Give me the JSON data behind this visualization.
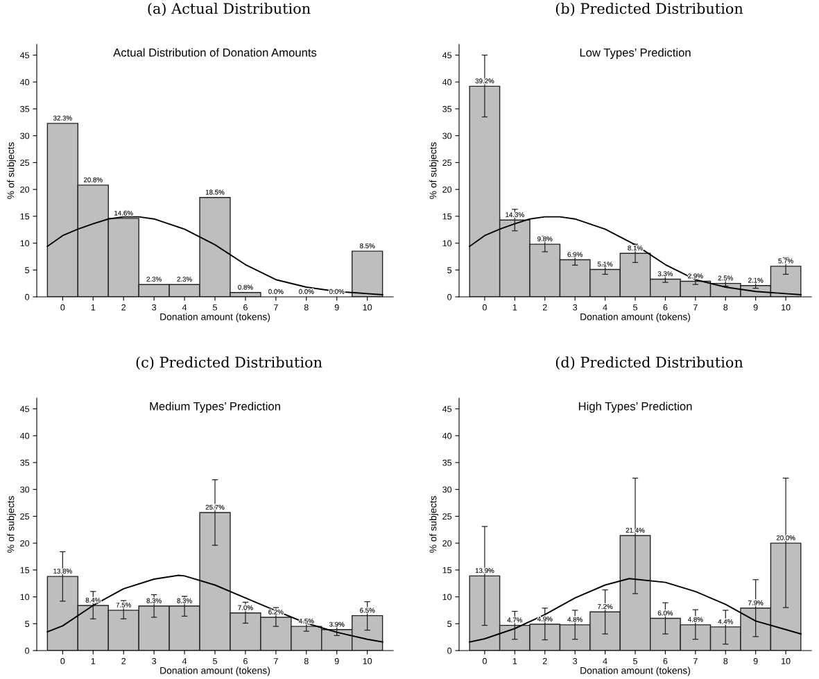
{
  "chart_data": [
    {
      "type": "bar",
      "title": "(a) Actual Distribution",
      "subtitle": "Actual Distribution of Donation Amounts",
      "xlabel": "Donation amount (tokens)",
      "ylabel": "% of subjects",
      "x": [
        0,
        1,
        2,
        3,
        4,
        5,
        6,
        7,
        8,
        9,
        10
      ],
      "xlim": [
        -0.85,
        10.85
      ],
      "xticks": [
        0,
        1,
        2,
        3,
        4,
        5,
        6,
        7,
        8,
        9,
        10
      ],
      "ylim": [
        0,
        47
      ],
      "yticks": [
        0,
        5,
        10,
        15,
        20,
        25,
        30,
        35,
        40,
        45
      ],
      "grid": false,
      "series": [
        {
          "color": "#bebebe",
          "values": [
            32.3,
            20.8,
            14.6,
            2.3,
            2.3,
            18.5,
            0.8,
            0.0,
            0.0,
            0.0,
            8.5
          ],
          "value_labels": [
            "32.3%",
            "20.8%",
            "14.6%",
            "2.3%",
            "2.3%",
            "18.5%",
            "0.8%",
            "0.0%",
            "0.0%",
            "0.0%",
            "8.5%"
          ]
        },
        {
          "type": "line",
          "color": "#000000",
          "x": [
            -0.5,
            0,
            0.5,
            1,
            1.5,
            2,
            2.5,
            3,
            4,
            5,
            6,
            7,
            8,
            9,
            10,
            10.5
          ],
          "values": [
            9.4,
            11.4,
            12.6,
            13.6,
            14.5,
            14.9,
            14.9,
            14.5,
            12.6,
            9.7,
            6.0,
            3.2,
            1.8,
            1.0,
            0.6,
            0.4
          ]
        }
      ]
    },
    {
      "type": "bar",
      "title": "(b) Predicted Distribution",
      "subtitle": "Low Types’ Prediction",
      "xlabel": "Donation amount (tokens)",
      "ylabel": "% of subjects",
      "x": [
        0,
        1,
        2,
        3,
        4,
        5,
        6,
        7,
        8,
        9,
        10
      ],
      "xlim": [
        -0.85,
        10.85
      ],
      "xticks": [
        0,
        1,
        2,
        3,
        4,
        5,
        6,
        7,
        8,
        9,
        10
      ],
      "ylim": [
        0,
        47
      ],
      "yticks": [
        0,
        5,
        10,
        15,
        20,
        25,
        30,
        35,
        40,
        45
      ],
      "grid": false,
      "series": [
        {
          "color": "#bebebe",
          "values": [
            39.2,
            14.3,
            9.8,
            6.9,
            5.1,
            8.1,
            3.3,
            2.9,
            2.5,
            2.1,
            5.7
          ],
          "value_labels": [
            "39.2%",
            "14.3%",
            "9.8%",
            "6.9%",
            "5.1%",
            "8.1%",
            "3.3%",
            "2.9%",
            "2.5%",
            "2.1%",
            "5.7%"
          ],
          "errors": [
            [
              33.5,
              45.0
            ],
            [
              12.3,
              16.3
            ],
            [
              8.4,
              11.3
            ],
            [
              5.9,
              8.0
            ],
            [
              4.2,
              6.0
            ],
            [
              6.4,
              9.8
            ],
            [
              2.7,
              4.1
            ],
            [
              2.3,
              3.5
            ],
            [
              2.0,
              3.1
            ],
            [
              1.6,
              2.8
            ],
            [
              4.2,
              7.3
            ]
          ]
        },
        {
          "type": "line",
          "color": "#000000",
          "x": [
            -0.5,
            0,
            0.5,
            1,
            1.5,
            2,
            2.5,
            3,
            4,
            5,
            6,
            7,
            8,
            9,
            10,
            10.5
          ],
          "values": [
            9.4,
            11.4,
            12.6,
            13.6,
            14.5,
            14.9,
            14.9,
            14.5,
            12.6,
            9.7,
            6.0,
            3.2,
            1.8,
            1.0,
            0.6,
            0.4
          ]
        }
      ]
    },
    {
      "type": "bar",
      "title": "(c) Predicted Distribution",
      "subtitle": "Medium Types’ Prediction",
      "xlabel": "Donation amount (tokens)",
      "ylabel": "% of subjects",
      "x": [
        0,
        1,
        2,
        3,
        4,
        5,
        6,
        7,
        8,
        9,
        10
      ],
      "xlim": [
        -0.85,
        10.85
      ],
      "xticks": [
        0,
        1,
        2,
        3,
        4,
        5,
        6,
        7,
        8,
        9,
        10
      ],
      "ylim": [
        0,
        47
      ],
      "yticks": [
        0,
        5,
        10,
        15,
        20,
        25,
        30,
        35,
        40,
        45
      ],
      "grid": false,
      "series": [
        {
          "color": "#bebebe",
          "values": [
            13.8,
            8.4,
            7.5,
            8.3,
            8.3,
            25.7,
            7.0,
            6.2,
            4.5,
            3.9,
            6.5
          ],
          "value_labels": [
            "13.8%",
            "8.4%",
            "7.5%",
            "8.3%",
            "8.3%",
            "25.7%",
            "7.0%",
            "6.2%",
            "4.5%",
            "3.9%",
            "6.5%"
          ],
          "errors": [
            [
              9.2,
              18.4
            ],
            [
              5.9,
              11.0
            ],
            [
              5.9,
              9.3
            ],
            [
              6.2,
              10.4
            ],
            [
              6.4,
              10.1
            ],
            [
              19.6,
              31.8
            ],
            [
              5.1,
              9.0
            ],
            [
              4.5,
              8.0
            ],
            [
              3.6,
              5.2
            ],
            [
              2.8,
              5.2
            ],
            [
              3.8,
              9.1
            ]
          ]
        },
        {
          "type": "line",
          "color": "#000000",
          "x": [
            -0.5,
            0,
            1,
            2,
            3,
            3.8,
            4,
            5,
            6,
            7,
            8,
            9,
            10,
            10.5
          ],
          "values": [
            3.5,
            4.6,
            8.4,
            11.5,
            13.3,
            14.0,
            13.9,
            12.2,
            9.8,
            7.4,
            5.1,
            3.4,
            2.1,
            1.6
          ]
        }
      ]
    },
    {
      "type": "bar",
      "title": "(d) Predicted Distribution",
      "subtitle": "High Types’ Prediction",
      "xlabel": "Donation amount (tokens)",
      "ylabel": "% of subjects",
      "x": [
        0,
        1,
        2,
        3,
        4,
        5,
        6,
        7,
        8,
        9,
        10
      ],
      "xlim": [
        -0.85,
        10.85
      ],
      "xticks": [
        0,
        1,
        2,
        3,
        4,
        5,
        6,
        7,
        8,
        9,
        10
      ],
      "ylim": [
        0,
        47
      ],
      "yticks": [
        0,
        5,
        10,
        15,
        20,
        25,
        30,
        35,
        40,
        45
      ],
      "grid": false,
      "series": [
        {
          "color": "#bebebe",
          "values": [
            13.9,
            4.7,
            4.9,
            4.8,
            7.2,
            21.4,
            6.0,
            4.8,
            4.4,
            7.9,
            20.0
          ],
          "value_labels": [
            "13.9%",
            "4.7%",
            "4.9%",
            "4.8%",
            "7.2%",
            "21.4%",
            "6.0%",
            "4.8%",
            "4.4%",
            "7.9%",
            "20.0%"
          ],
          "errors": [
            [
              4.7,
              23.1
            ],
            [
              2.1,
              7.3
            ],
            [
              2.0,
              7.9
            ],
            [
              2.1,
              7.5
            ],
            [
              3.1,
              11.3
            ],
            [
              10.6,
              32.1
            ],
            [
              3.1,
              8.9
            ],
            [
              2.1,
              7.6
            ],
            [
              1.2,
              7.5
            ],
            [
              2.6,
              13.2
            ],
            [
              8.0,
              32.1
            ]
          ]
        },
        {
          "type": "line",
          "color": "#000000",
          "x": [
            -0.5,
            0,
            1,
            2,
            3,
            4,
            4.8,
            6,
            7,
            8,
            9,
            10,
            10.5
          ],
          "values": [
            1.6,
            2.2,
            4.1,
            6.7,
            9.8,
            12.2,
            13.4,
            12.7,
            11.0,
            8.6,
            5.5,
            3.9,
            3.1
          ]
        }
      ]
    }
  ]
}
